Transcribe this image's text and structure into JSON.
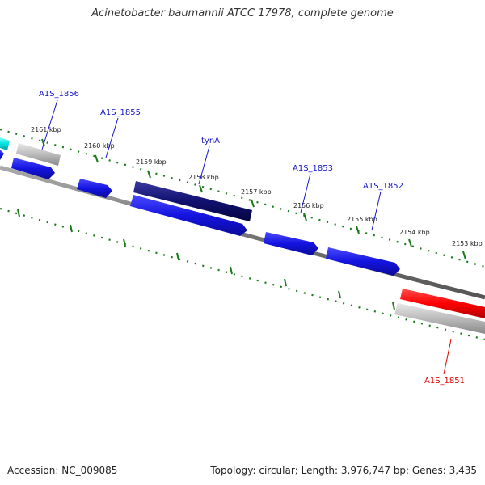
{
  "title": "Acinetobacter baumannii ATCC 17978, complete genome",
  "footer": {
    "accession": "Accession: NC_009085",
    "summary": "Topology: circular; Length: 3,976,747 bp; Genes: 3,435"
  },
  "ticks": [
    {
      "label": "2161 kbp"
    },
    {
      "label": "2160 kbp"
    },
    {
      "label": "2159 kbp"
    },
    {
      "label": "2158 kbp"
    },
    {
      "label": "2157 kbp"
    },
    {
      "label": "2156 kbp"
    },
    {
      "label": "2155 kbp"
    },
    {
      "label": "2154 kbp"
    },
    {
      "label": "2153 kbp"
    }
  ],
  "gene_labels": [
    {
      "name": "A1S_1856",
      "color": "#1414c8"
    },
    {
      "name": "A1S_1855",
      "color": "#1414c8"
    },
    {
      "name": "tynA",
      "color": "#1414c8"
    },
    {
      "name": "A1S_1853",
      "color": "#1414c8"
    },
    {
      "name": "A1S_1852",
      "color": "#1414c8"
    },
    {
      "name": "A1S_1851",
      "color": "#e00000"
    }
  ],
  "colors": {
    "backbone": "#777777",
    "tick": "#1a7a1a",
    "gene_blue": "#1414e0",
    "gene_navy": "#101070",
    "gene_cyan": "#00e0e0",
    "gene_red": "#ff0000",
    "gene_gray": "#bbbbbb"
  }
}
